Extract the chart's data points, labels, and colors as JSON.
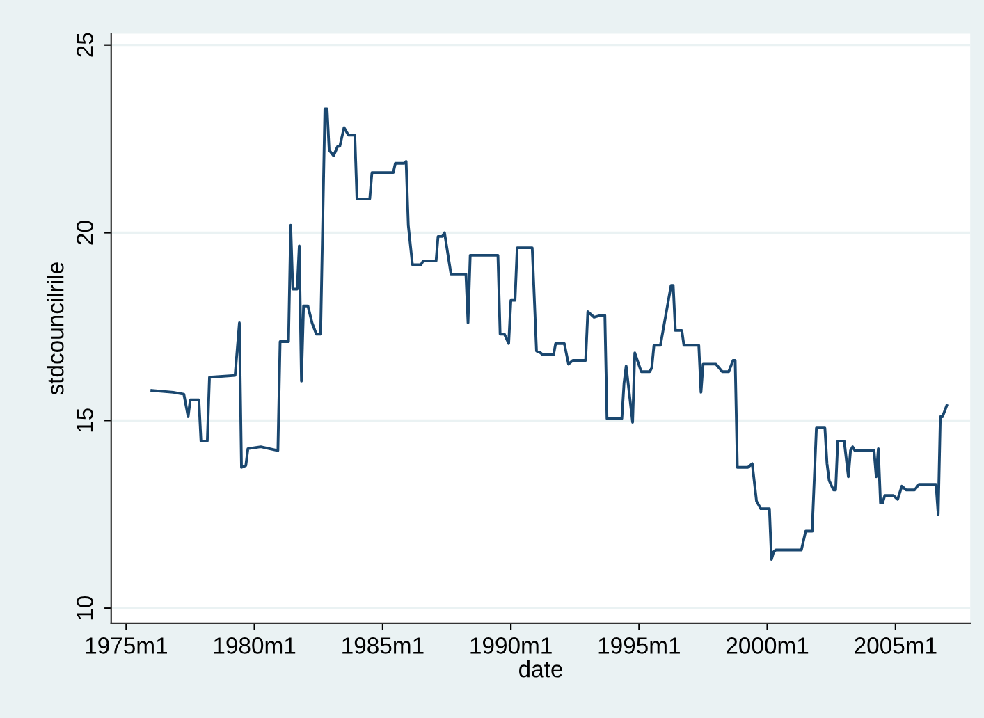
{
  "chart_data": {
    "type": "line",
    "xlabel": "date",
    "ylabel": "stdcouncilrile",
    "xlim": [
      "1974-06",
      "2007-12"
    ],
    "ylim": [
      9.6,
      25.3
    ],
    "xticks": [
      {
        "value": "1975-01",
        "label": "1975m1"
      },
      {
        "value": "1980-01",
        "label": "1980m1"
      },
      {
        "value": "1985-01",
        "label": "1985m1"
      },
      {
        "value": "1990-01",
        "label": "1990m1"
      },
      {
        "value": "1995-01",
        "label": "1995m1"
      },
      {
        "value": "2000-01",
        "label": "2000m1"
      },
      {
        "value": "2005-01",
        "label": "2005m1"
      }
    ],
    "yticks": [
      10,
      15,
      20,
      25
    ],
    "grid": "y",
    "marker": "none",
    "line_style": "solid",
    "series": [
      {
        "color": "#1a476f",
        "x": [
          "1976-01",
          "1976-11",
          "1977-04",
          "1977-06",
          "1977-07",
          "1977-11",
          "1977-12",
          "1978-03",
          "1978-04",
          "1979-04",
          "1979-06",
          "1979-07",
          "1979-09",
          "1979-10",
          "1980-04",
          "1980-12",
          "1981-01",
          "1981-05",
          "1981-06",
          "1981-07",
          "1981-09",
          "1981-10",
          "1981-11",
          "1981-12",
          "1982-02",
          "1982-04",
          "1982-06",
          "1982-08",
          "1982-10",
          "1982-11",
          "1982-12",
          "1983-02",
          "1983-04",
          "1983-05",
          "1983-07",
          "1983-09",
          "1983-12",
          "1984-01",
          "1984-07",
          "1984-08",
          "1985-06",
          "1985-07",
          "1985-11",
          "1985-12",
          "1986-01",
          "1986-03",
          "1986-07",
          "1986-08",
          "1987-02",
          "1987-03",
          "1987-05",
          "1987-06",
          "1987-09",
          "1988-04",
          "1988-05",
          "1988-06",
          "1989-07",
          "1989-08",
          "1989-10",
          "1989-12",
          "1990-01",
          "1990-03",
          "1990-04",
          "1990-11",
          "1991-01",
          "1991-03",
          "1991-04",
          "1991-09",
          "1991-10",
          "1992-02",
          "1992-04",
          "1992-06",
          "1992-12",
          "1993-01",
          "1993-04",
          "1993-07",
          "1993-09",
          "1993-10",
          "1994-05",
          "1994-06",
          "1994-07",
          "1994-10",
          "1994-11",
          "1995-02",
          "1995-06",
          "1995-07",
          "1995-08",
          "1995-11",
          "1996-04",
          "1996-05",
          "1996-06",
          "1996-09",
          "1996-10",
          "1997-05",
          "1997-06",
          "1997-07",
          "1998-01",
          "1998-04",
          "1998-07",
          "1998-09",
          "1998-10",
          "1998-11",
          "1999-04",
          "1999-06",
          "1999-08",
          "1999-10",
          "2000-02",
          "2000-03",
          "2000-04",
          "2000-05",
          "2001-05",
          "2001-07",
          "2001-10",
          "2001-12",
          "2002-04",
          "2002-05",
          "2002-06",
          "2002-08",
          "2002-09",
          "2002-10",
          "2003-01",
          "2003-03",
          "2003-04",
          "2003-05",
          "2003-06",
          "2004-03",
          "2004-04",
          "2004-05",
          "2004-06",
          "2004-07",
          "2004-08",
          "2004-12",
          "2005-02",
          "2005-04",
          "2005-06",
          "2005-10",
          "2005-12",
          "2006-08",
          "2006-09",
          "2006-10",
          "2006-11",
          "2007-01"
        ],
        "values": [
          15.8,
          15.75,
          15.7,
          15.1,
          15.55,
          15.55,
          14.45,
          14.45,
          16.15,
          16.2,
          17.6,
          13.75,
          13.8,
          14.25,
          14.3,
          14.2,
          17.1,
          17.1,
          20.2,
          18.5,
          18.5,
          19.65,
          16.05,
          18.05,
          18.05,
          17.6,
          17.3,
          17.3,
          23.3,
          23.3,
          22.2,
          22.05,
          22.3,
          22.3,
          22.8,
          22.6,
          22.6,
          20.9,
          20.9,
          21.6,
          21.6,
          21.85,
          21.85,
          21.9,
          20.2,
          19.15,
          19.15,
          19.25,
          19.25,
          19.9,
          19.9,
          20.0,
          18.9,
          18.9,
          17.6,
          19.4,
          19.4,
          17.3,
          17.3,
          17.05,
          18.2,
          18.2,
          19.6,
          19.6,
          16.85,
          16.8,
          16.75,
          16.75,
          17.05,
          17.05,
          16.5,
          16.6,
          16.6,
          17.9,
          17.75,
          17.8,
          17.8,
          15.05,
          15.05,
          16.0,
          16.45,
          14.95,
          16.8,
          16.3,
          16.3,
          16.4,
          17.0,
          17.0,
          18.6,
          18.6,
          17.4,
          17.4,
          17.0,
          17.0,
          15.75,
          16.5,
          16.5,
          16.3,
          16.3,
          16.6,
          16.6,
          13.75,
          13.75,
          13.85,
          12.85,
          12.65,
          12.65,
          11.3,
          11.5,
          11.55,
          11.55,
          12.05,
          12.05,
          14.8,
          14.8,
          13.85,
          13.4,
          13.15,
          13.15,
          14.45,
          14.45,
          13.5,
          14.2,
          14.3,
          14.2,
          14.2,
          13.5,
          14.25,
          12.8,
          12.8,
          13.0,
          13.0,
          12.9,
          13.25,
          13.15,
          13.15,
          13.3,
          13.3,
          12.5,
          15.1,
          15.1,
          15.4
        ]
      }
    ]
  }
}
